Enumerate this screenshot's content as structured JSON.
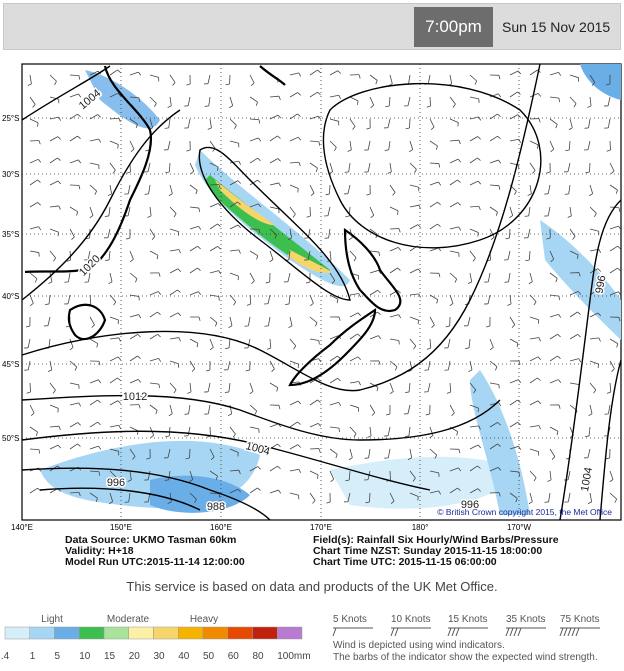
{
  "header": {
    "time": "7:00pm",
    "date": "Sun 15 Nov 2015"
  },
  "map": {
    "lat_labels": [
      "25°S",
      "30°S",
      "35°S",
      "40°S",
      "45°S",
      "50°S"
    ],
    "lon_labels": [
      "140°E",
      "150°E",
      "160°E",
      "170°E",
      "180°",
      "170°W"
    ],
    "isobar_labels": [
      "1004",
      "1020",
      "1012",
      "1004",
      "996",
      "988",
      "996",
      "1004",
      "996"
    ],
    "copyright": "© British Crown copyright 2015, the Met Office"
  },
  "info": {
    "left": [
      "Data Source: UKMO Tasman 60km",
      "Validity: H+18",
      "Model Run UTC:2015-11-14 12:00:00"
    ],
    "right": [
      "Field(s): Rainfall Six Hourly/Wind Barbs/Pressure",
      "Chart Time NZST: Sunday 2015-11-15 18:00:00",
      "Chart Time UTC: 2015-11-15 06:00:00"
    ]
  },
  "notice": "This service is based on data and products of the UK Met Office.",
  "legend": {
    "intensity_labels": [
      "Light",
      "Moderate",
      "Heavy"
    ],
    "scale_labels": [
      ".4",
      "1",
      "5",
      "10",
      "15",
      "20",
      "30",
      "40",
      "50",
      "60",
      "80",
      "100mm"
    ],
    "colors": [
      "#d6eefa",
      "#a6d6f4",
      "#6aaee8",
      "#3dbf4f",
      "#a9e39c",
      "#fbf0a4",
      "#f6d66a",
      "#f5b300",
      "#f28a00",
      "#e64a00",
      "#c0220e",
      "#b97bd1"
    ],
    "wind_labels": [
      "5 Knots",
      "10 Knots",
      "15 Knots",
      "35 Knots",
      "75 Knots"
    ],
    "notes": [
      "Wind is depicted using wind indicators.",
      "The barbs of the indicator show the expected wind strength."
    ]
  }
}
